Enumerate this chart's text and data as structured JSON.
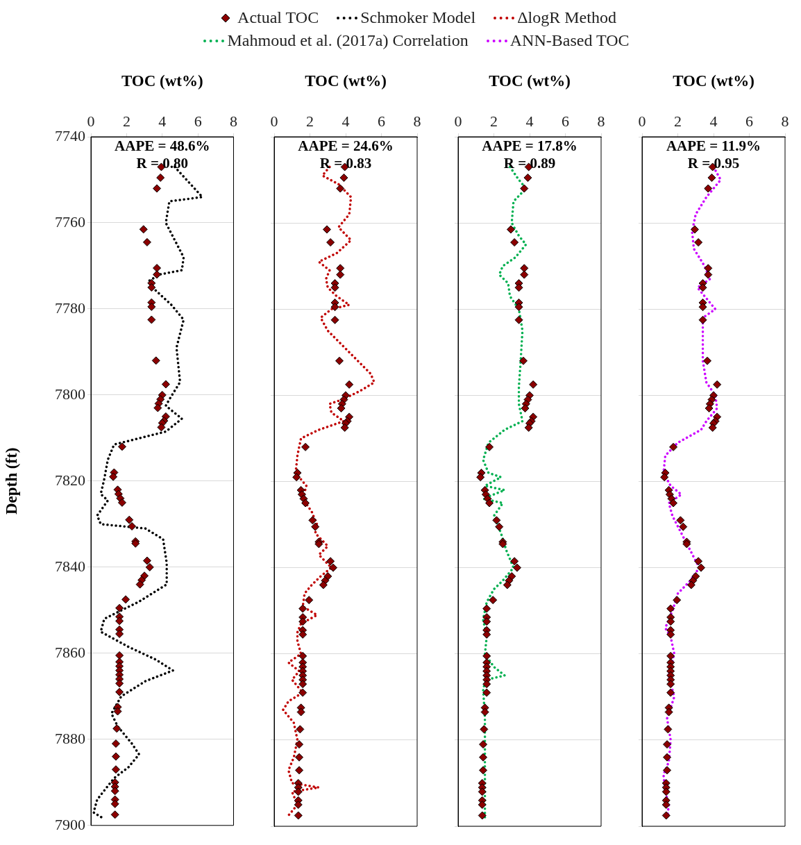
{
  "chart_data": [
    {
      "type": "scatter",
      "xlabel": "TOC (wt%)",
      "ylabel": "Depth (ft)",
      "xlim": [
        0,
        8
      ],
      "xticks": [
        0,
        2,
        4,
        6,
        8
      ],
      "ylim": [
        7900,
        7740
      ],
      "yticks": [
        7740,
        7760,
        7780,
        7800,
        7820,
        7840,
        7860,
        7880,
        7900
      ],
      "grid": "y",
      "legend": "top",
      "annotations": [
        "AAPE = 48.6%",
        "R = 0.80"
      ],
      "series": [
        {
          "name": "Actual TOC",
          "type": "scatter",
          "marker": "diamond",
          "color": "#8b0000",
          "x": [
            3.95,
            3.9,
            3.7,
            2.95,
            3.15,
            3.7,
            3.7,
            3.4,
            3.4,
            3.4,
            3.4,
            3.4,
            3.65,
            4.2,
            4.0,
            3.9,
            3.8,
            3.75,
            4.2,
            4.1,
            4.0,
            3.95,
            1.75,
            1.3,
            1.25,
            1.5,
            1.55,
            1.65,
            1.75,
            2.15,
            2.3,
            2.5,
            2.5,
            3.15,
            3.3,
            3.0,
            2.85,
            2.75,
            1.95,
            1.6,
            1.6,
            1.6,
            1.6,
            1.6,
            1.6,
            1.6,
            1.6,
            1.6,
            1.6,
            1.6,
            1.6,
            1.6,
            1.5,
            1.5,
            1.45,
            1.4,
            1.4,
            1.4,
            1.35,
            1.35,
            1.35,
            1.35,
            1.35,
            1.35
          ],
          "values": [
            7747,
            7749.5,
            7752,
            7761.5,
            7764.5,
            7770.5,
            7772,
            7774,
            7775,
            7778.5,
            7779.5,
            7782.5,
            7792,
            7797.5,
            7800,
            7801,
            7802,
            7803,
            7805,
            7806,
            7806.5,
            7807.5,
            7812,
            7818,
            7819,
            7822,
            7823,
            7824,
            7825,
            7829,
            7830.5,
            7834,
            7834.5,
            7838.5,
            7840,
            7842,
            7843,
            7844,
            7847.5,
            7849.5,
            7851.5,
            7852.5,
            7854.5,
            7855.5,
            7860.5,
            7862,
            7863,
            7864,
            7865,
            7866,
            7867,
            7869,
            7872.5,
            7873.5,
            7877.5,
            7881,
            7884,
            7887,
            7890,
            7891,
            7892,
            7894,
            7895,
            7897.5
          ]
        },
        {
          "name": "Schmoker Model",
          "type": "line",
          "marker": "none",
          "line_style": "dotted",
          "color": "#000000",
          "x": [
            4.7,
            6.25,
            4.4,
            4.2,
            4.7,
            5.2,
            5.1,
            3.85,
            3.25,
            3.45,
            4.5,
            5.2,
            4.8,
            5.0,
            4.4,
            4.2,
            5.1,
            4.2,
            1.3,
            0.95,
            0.75,
            0.55,
            0.95,
            0.35,
            0.55,
            3.05,
            4.05,
            4.25,
            4.25,
            2.7,
            0.75,
            0.55,
            2.1,
            3.65,
            4.6,
            3.05,
            1.7,
            1.15,
            1.5,
            2.3,
            2.7,
            2.1,
            1.3,
            0.35,
            0.15,
            0.75
          ],
          "values": [
            7747,
            7754,
            7755,
            7760,
            7764,
            7768,
            7771,
            7772,
            7773.5,
            7775,
            7779,
            7782.5,
            7789,
            7797,
            7801,
            7802.5,
            7805.5,
            7808.5,
            7811.5,
            7815,
            7819.5,
            7823,
            7824.5,
            7828,
            7830,
            7831,
            7833.5,
            7839,
            7844,
            7848,
            7852,
            7855,
            7858.5,
            7861.5,
            7864,
            7866.5,
            7870,
            7874,
            7877,
            7881,
            7883.5,
            7886.5,
            7889,
            7894,
            7897,
            7898.5
          ]
        }
      ]
    },
    {
      "type": "scatter",
      "xlabel": "TOC (wt%)",
      "xlim": [
        0,
        8
      ],
      "xticks": [
        0,
        2,
        4,
        6,
        8
      ],
      "ylim": [
        7900,
        7740
      ],
      "yticks": [
        7740,
        7760,
        7780,
        7800,
        7820,
        7840,
        7860,
        7880,
        7900
      ],
      "grid": "y",
      "legend": "top",
      "tick_labels": "x",
      "annotations": [
        "AAPE = 24.6%",
        "R = 0.83"
      ],
      "series": [
        {
          "type": "scatter",
          "marker": "diamond",
          "color": "#8b0000",
          "x": [
            3.95,
            3.9,
            3.7,
            2.95,
            3.15,
            3.7,
            3.7,
            3.4,
            3.4,
            3.4,
            3.4,
            3.4,
            3.65,
            4.2,
            4.0,
            3.9,
            3.8,
            3.75,
            4.2,
            4.1,
            4.0,
            3.95,
            1.75,
            1.3,
            1.25,
            1.5,
            1.55,
            1.65,
            1.75,
            2.15,
            2.3,
            2.5,
            2.5,
            3.15,
            3.3,
            3.0,
            2.85,
            2.75,
            1.95,
            1.6,
            1.6,
            1.6,
            1.6,
            1.6,
            1.6,
            1.6,
            1.6,
            1.6,
            1.6,
            1.6,
            1.6,
            1.6,
            1.5,
            1.5,
            1.45,
            1.4,
            1.4,
            1.4,
            1.35,
            1.35,
            1.35,
            1.35,
            1.35,
            1.35
          ],
          "values": [
            7747,
            7749.5,
            7752,
            7761.5,
            7764.5,
            7770.5,
            7772,
            7774,
            7775,
            7778.5,
            7779.5,
            7782.5,
            7792,
            7797.5,
            7800,
            7801,
            7802,
            7803,
            7805,
            7806,
            7806.5,
            7807.5,
            7812,
            7818,
            7819,
            7822,
            7823,
            7824,
            7825,
            7829,
            7830.5,
            7834,
            7834.5,
            7838.5,
            7840,
            7842,
            7843,
            7844,
            7847.5,
            7849.5,
            7851.5,
            7852.5,
            7854.5,
            7855.5,
            7860.5,
            7862,
            7863,
            7864,
            7865,
            7866,
            7867,
            7869,
            7872.5,
            7873.5,
            7877.5,
            7881,
            7884,
            7887,
            7890,
            7891,
            7892,
            7894,
            7895,
            7897.5
          ]
        },
        {
          "name": "ΔlogR Method",
          "type": "line",
          "marker": "none",
          "line_style": "dotted",
          "color": "#c00000",
          "x": [
            3.1,
            2.7,
            3.6,
            4.3,
            4.2,
            3.6,
            4.3,
            3.5,
            2.5,
            3.1,
            2.9,
            3.0,
            3.5,
            4.2,
            3.2,
            2.6,
            3.0,
            4.2,
            5.4,
            5.6,
            4.8,
            3.8,
            3.1,
            3.2,
            3.9,
            2.5,
            1.5,
            1.3,
            1.2,
            1.8,
            1.6,
            2.1,
            2.4,
            2.3,
            3.0,
            2.5,
            3.2,
            2.6,
            2.1,
            1.7,
            1.6,
            2.4,
            1.5,
            1.3,
            1.3,
            1.5,
            0.8,
            1.4,
            1.0,
            1.6,
            0.8,
            0.5,
            1.1,
            1.3,
            1.1,
            0.8,
            1.0,
            2.5,
            1.0,
            1.3,
            0.7
          ],
          "values": [
            7747,
            7749,
            7751,
            7754,
            7758,
            7761,
            7764,
            7767,
            7769,
            7771,
            7773,
            7775,
            7777,
            7779,
            7780,
            7782,
            7785,
            7790,
            7795,
            7797,
            7799,
            7801,
            7802,
            7804,
            7806,
            7808,
            7810,
            7814,
            7818,
            7821,
            7824,
            7827,
            7830,
            7832,
            7835,
            7837,
            7840,
            7842,
            7844,
            7846,
            7849,
            7851,
            7853,
            7855,
            7857,
            7860,
            7862,
            7864,
            7866,
            7869,
            7871,
            7873,
            7876,
            7880,
            7884,
            7887,
            7890,
            7891,
            7892,
            7895,
            7898
          ]
        }
      ]
    },
    {
      "type": "scatter",
      "xlabel": "TOC (wt%)",
      "xlim": [
        0,
        8
      ],
      "xticks": [
        0,
        2,
        4,
        6,
        8
      ],
      "ylim": [
        7900,
        7740
      ],
      "yticks": [
        7740,
        7760,
        7780,
        7800,
        7820,
        7840,
        7860,
        7880,
        7900
      ],
      "grid": "y",
      "legend": "top",
      "tick_labels": "x",
      "annotations": [
        "AAPE = 17.8%",
        "R = 0.89"
      ],
      "series": [
        {
          "type": "scatter",
          "marker": "diamond",
          "color": "#8b0000",
          "x": [
            3.95,
            3.9,
            3.7,
            2.95,
            3.15,
            3.7,
            3.7,
            3.4,
            3.4,
            3.4,
            3.4,
            3.4,
            3.65,
            4.2,
            4.0,
            3.9,
            3.8,
            3.75,
            4.2,
            4.1,
            4.0,
            3.95,
            1.75,
            1.3,
            1.25,
            1.5,
            1.55,
            1.65,
            1.75,
            2.15,
            2.3,
            2.5,
            2.5,
            3.15,
            3.3,
            3.0,
            2.85,
            2.75,
            1.95,
            1.6,
            1.6,
            1.6,
            1.6,
            1.6,
            1.6,
            1.6,
            1.6,
            1.6,
            1.6,
            1.6,
            1.6,
            1.6,
            1.5,
            1.5,
            1.45,
            1.4,
            1.4,
            1.4,
            1.35,
            1.35,
            1.35,
            1.35,
            1.35,
            1.35
          ],
          "values": [
            7747,
            7749.5,
            7752,
            7761.5,
            7764.5,
            7770.5,
            7772,
            7774,
            7775,
            7778.5,
            7779.5,
            7782.5,
            7792,
            7797.5,
            7800,
            7801,
            7802,
            7803,
            7805,
            7806,
            7806.5,
            7807.5,
            7812,
            7818,
            7819,
            7822,
            7823,
            7824,
            7825,
            7829,
            7830.5,
            7834,
            7834.5,
            7838.5,
            7840,
            7842,
            7843,
            7844,
            7847.5,
            7849.5,
            7851.5,
            7852.5,
            7854.5,
            7855.5,
            7860.5,
            7862,
            7863,
            7864,
            7865,
            7866,
            7867,
            7869,
            7872.5,
            7873.5,
            7877.5,
            7881,
            7884,
            7887,
            7890,
            7891,
            7892,
            7894,
            7895,
            7897.5
          ]
        },
        {
          "name": "Mahmoud et al. (2017a) Correlation",
          "type": "line",
          "marker": "none",
          "line_style": "dotted",
          "color": "#00b050",
          "x": [
            2.9,
            3.4,
            3.8,
            3.1,
            3.0,
            3.4,
            3.8,
            3.2,
            2.5,
            2.3,
            2.8,
            2.9,
            3.4,
            3.6,
            3.5,
            3.4,
            3.4,
            3.6,
            2.6,
            1.7,
            1.4,
            1.7,
            2.4,
            1.5,
            2.6,
            1.4,
            2.5,
            2.0,
            2.4,
            2.7,
            3.1,
            2.5,
            2.0,
            1.6,
            1.4,
            1.6,
            1.5,
            2.0,
            2.6,
            1.6,
            1.4,
            1.5,
            1.5,
            1.5,
            1.5
          ],
          "values": [
            7747,
            7750,
            7752,
            7755,
            7760,
            7763,
            7765,
            7768,
            7770,
            7772,
            7774,
            7777,
            7780,
            7785,
            7792,
            7798,
            7802,
            7806,
            7808,
            7811,
            7815,
            7818,
            7819,
            7821,
            7822,
            7824,
            7825,
            7828,
            7832,
            7836,
            7840,
            7843,
            7845,
            7848,
            7852,
            7856,
            7860,
            7863,
            7865,
            7866,
            7868,
            7875,
            7885,
            7895,
            7898
          ]
        }
      ]
    },
    {
      "type": "scatter",
      "xlabel": "TOC (wt%)",
      "xlim": [
        0,
        8
      ],
      "xticks": [
        0,
        2,
        4,
        6,
        8
      ],
      "ylim": [
        7900,
        7740
      ],
      "yticks": [
        7740,
        7760,
        7780,
        7800,
        7820,
        7840,
        7860,
        7880,
        7900
      ],
      "grid": "y",
      "legend": "top",
      "tick_labels": "x",
      "annotations": [
        "AAPE = 11.9%",
        "R = 0.95"
      ],
      "series": [
        {
          "type": "scatter",
          "marker": "diamond",
          "color": "#8b0000",
          "x": [
            3.95,
            3.9,
            3.7,
            2.95,
            3.15,
            3.7,
            3.7,
            3.4,
            3.4,
            3.4,
            3.4,
            3.4,
            3.65,
            4.2,
            4.0,
            3.9,
            3.8,
            3.75,
            4.2,
            4.1,
            4.0,
            3.95,
            1.75,
            1.3,
            1.25,
            1.5,
            1.55,
            1.65,
            1.75,
            2.15,
            2.3,
            2.5,
            2.5,
            3.15,
            3.3,
            3.0,
            2.85,
            2.75,
            1.95,
            1.6,
            1.6,
            1.6,
            1.6,
            1.6,
            1.6,
            1.6,
            1.6,
            1.6,
            1.6,
            1.6,
            1.6,
            1.6,
            1.5,
            1.5,
            1.45,
            1.4,
            1.4,
            1.4,
            1.35,
            1.35,
            1.35,
            1.35,
            1.35,
            1.35
          ],
          "values": [
            7747,
            7749.5,
            7752,
            7761.5,
            7764.5,
            7770.5,
            7772,
            7774,
            7775,
            7778.5,
            7779.5,
            7782.5,
            7792,
            7797.5,
            7800,
            7801,
            7802,
            7803,
            7805,
            7806,
            7806.5,
            7807.5,
            7812,
            7818,
            7819,
            7822,
            7823,
            7824,
            7825,
            7829,
            7830.5,
            7834,
            7834.5,
            7838.5,
            7840,
            7842,
            7843,
            7844,
            7847.5,
            7849.5,
            7851.5,
            7852.5,
            7854.5,
            7855.5,
            7860.5,
            7862,
            7863,
            7864,
            7865,
            7866,
            7867,
            7869,
            7872.5,
            7873.5,
            7877.5,
            7881,
            7884,
            7887,
            7890,
            7891,
            7892,
            7894,
            7895,
            7897.5
          ]
        },
        {
          "name": "ANN-Based TOC",
          "type": "line",
          "marker": "none",
          "line_style": "dotted",
          "color": "#cc00ff",
          "x": [
            4.0,
            4.4,
            3.6,
            3.0,
            2.8,
            2.9,
            3.5,
            3.8,
            3.1,
            3.5,
            4.1,
            3.4,
            3.4,
            3.4,
            3.6,
            4.1,
            4.2,
            3.6,
            3.3,
            2.0,
            1.3,
            1.2,
            1.6,
            2.2,
            1.5,
            1.7,
            2.2,
            2.7,
            3.2,
            2.7,
            2.0,
            1.7,
            1.3,
            1.6,
            1.8,
            1.5,
            1.8,
            1.4,
            1.6,
            1.5,
            1.2,
            1.3,
            1.5,
            1.4
          ],
          "values": [
            7747,
            7750,
            7754,
            7758,
            7762,
            7766,
            7770,
            7773,
            7775,
            7777,
            7780,
            7782,
            7787,
            7792,
            7797,
            7800,
            7803,
            7806,
            7808,
            7811,
            7814,
            7818,
            7821,
            7823,
            7825,
            7828,
            7832,
            7836,
            7840,
            7843,
            7846,
            7850,
            7854,
            7856,
            7860,
            7865,
            7870,
            7875,
            7880,
            7885,
            7888,
            7892,
            7895,
            7898
          ]
        }
      ]
    }
  ]
}
